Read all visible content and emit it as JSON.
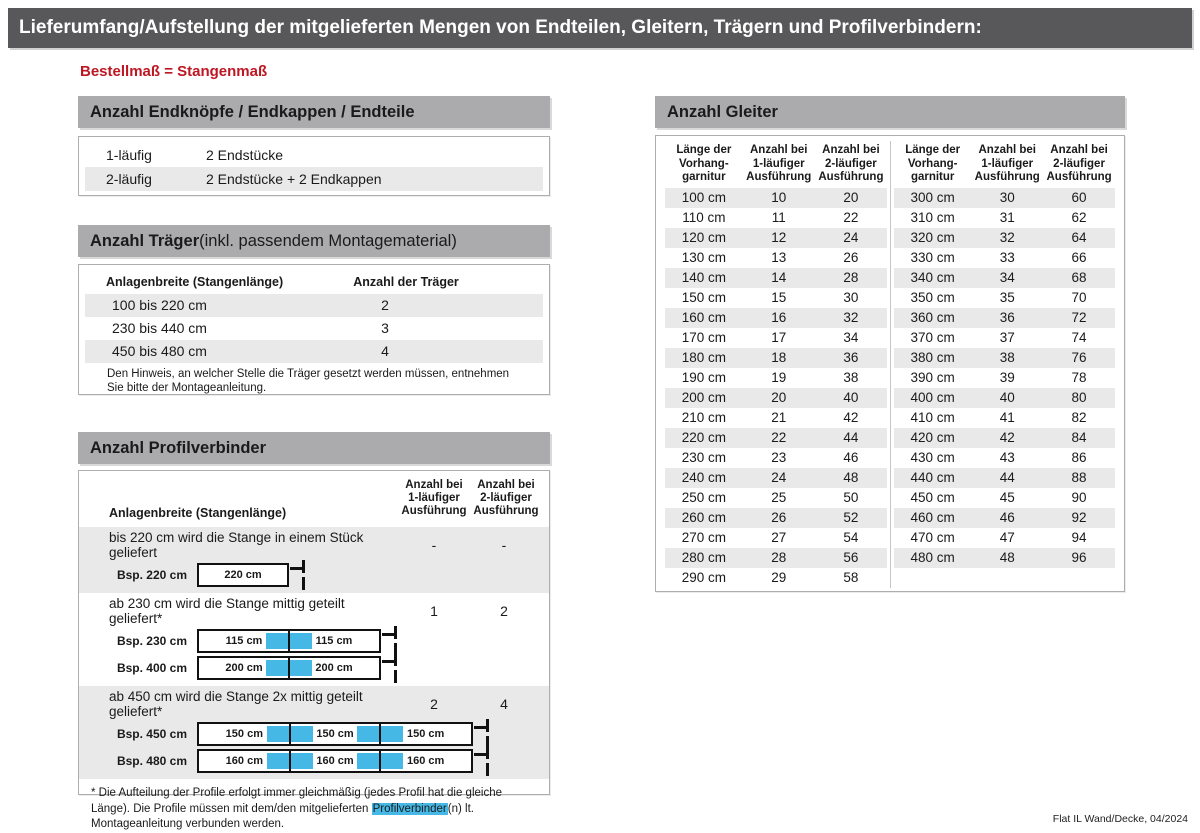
{
  "page": {
    "title": "Lieferumfang/Aufstellung der mitgelieferten Mengen von Endteilen, Gleitern, Trägern und Profilverbindern:",
    "subtitle": "Bestellmaß = Stangenmaß",
    "footer": "Flat IL Wand/Decke, 04/2024"
  },
  "colors": {
    "header_bar": "#58585a",
    "section_bar": "#ababad",
    "row_stripe": "#e9e9ea",
    "accent_red": "#be1622",
    "connector_blue": "#45b8e6"
  },
  "endteile": {
    "title": "Anzahl Endknöpfe / Endkappen / Endteile",
    "rows": [
      {
        "label": "1-läufig",
        "value": "2 Endstücke"
      },
      {
        "label": "2-läufig",
        "value": "2 Endstücke + 2 Endkappen"
      }
    ]
  },
  "traeger": {
    "title_bold": "Anzahl Träger",
    "title_rest": " (inkl. passendem Montagematerial)",
    "col1": "Anlagenbreite (Stangenlänge)",
    "col2": "Anzahl der Träger",
    "rows": [
      {
        "range": "100 bis 220 cm",
        "count": "2"
      },
      {
        "range": "230 bis 440 cm",
        "count": "3"
      },
      {
        "range": "450 bis 480 cm",
        "count": "4"
      }
    ],
    "note": "Den Hinweis, an welcher Stelle die Träger gesetzt werden müssen, entnehmen Sie bitte der Montageanleitung."
  },
  "profilverbinder": {
    "title": "Anzahl Profilverbinder",
    "col1": "Anlagenbreite (Stangenlänge)",
    "col2": "Anzahl bei\n1-läufiger\nAusführung",
    "col3": "Anzahl bei\n2-läufiger\nAusführung",
    "groups": [
      {
        "text": "bis 220 cm wird die Stange in einem Stück geliefert",
        "count1": "-",
        "count2": "-",
        "examples": [
          {
            "label": "Bsp. 220 cm",
            "segments": [
              "220 cm"
            ]
          }
        ]
      },
      {
        "text": "ab 230 cm wird die Stange mittig geteilt geliefert*",
        "count1": "1",
        "count2": "2",
        "examples": [
          {
            "label": "Bsp. 230 cm",
            "segments": [
              "115 cm",
              "115 cm"
            ]
          },
          {
            "label": "Bsp. 400 cm",
            "segments": [
              "200 cm",
              "200 cm"
            ]
          }
        ]
      },
      {
        "text": "ab 450 cm wird die Stange 2x mittig geteilt geliefert*",
        "count1": "2",
        "count2": "4",
        "examples": [
          {
            "label": "Bsp. 450 cm",
            "segments": [
              "150 cm",
              "150 cm",
              "150 cm"
            ]
          },
          {
            "label": "Bsp. 480 cm",
            "segments": [
              "160 cm",
              "160 cm",
              "160 cm"
            ]
          }
        ]
      }
    ],
    "footnote_pre": "* Die Aufteilung der Profile erfolgt immer gleichmäßig (jedes Profil hat die gleiche Länge). Die Profile müssen mit dem/den mitgelieferten ",
    "footnote_highlight": "Profilverbinder",
    "footnote_post": "(n) lt. Montageanleitung verbunden werden."
  },
  "gleiter": {
    "title": "Anzahl Gleiter",
    "headers": [
      "Länge der\nVorhang-\ngarnitur",
      "Anzahl bei\n1-läufiger\nAusführung",
      "Anzahl bei\n2-läufiger\nAusführung"
    ],
    "left_rows": [
      [
        "100 cm",
        "10",
        "20"
      ],
      [
        "110 cm",
        "11",
        "22"
      ],
      [
        "120 cm",
        "12",
        "24"
      ],
      [
        "130 cm",
        "13",
        "26"
      ],
      [
        "140 cm",
        "14",
        "28"
      ],
      [
        "150 cm",
        "15",
        "30"
      ],
      [
        "160 cm",
        "16",
        "32"
      ],
      [
        "170 cm",
        "17",
        "34"
      ],
      [
        "180 cm",
        "18",
        "36"
      ],
      [
        "190 cm",
        "19",
        "38"
      ],
      [
        "200 cm",
        "20",
        "40"
      ],
      [
        "210 cm",
        "21",
        "42"
      ],
      [
        "220 cm",
        "22",
        "44"
      ],
      [
        "230 cm",
        "23",
        "46"
      ],
      [
        "240 cm",
        "24",
        "48"
      ],
      [
        "250 cm",
        "25",
        "50"
      ],
      [
        "260 cm",
        "26",
        "52"
      ],
      [
        "270 cm",
        "27",
        "54"
      ],
      [
        "280 cm",
        "28",
        "56"
      ],
      [
        "290 cm",
        "29",
        "58"
      ]
    ],
    "right_rows": [
      [
        "300 cm",
        "30",
        "60"
      ],
      [
        "310 cm",
        "31",
        "62"
      ],
      [
        "320 cm",
        "32",
        "64"
      ],
      [
        "330 cm",
        "33",
        "66"
      ],
      [
        "340 cm",
        "34",
        "68"
      ],
      [
        "350 cm",
        "35",
        "70"
      ],
      [
        "360 cm",
        "36",
        "72"
      ],
      [
        "370 cm",
        "37",
        "74"
      ],
      [
        "380 cm",
        "38",
        "76"
      ],
      [
        "390 cm",
        "39",
        "78"
      ],
      [
        "400 cm",
        "40",
        "80"
      ],
      [
        "410 cm",
        "41",
        "82"
      ],
      [
        "420 cm",
        "42",
        "84"
      ],
      [
        "430 cm",
        "43",
        "86"
      ],
      [
        "440 cm",
        "44",
        "88"
      ],
      [
        "450 cm",
        "45",
        "90"
      ],
      [
        "460 cm",
        "46",
        "92"
      ],
      [
        "470 cm",
        "47",
        "94"
      ],
      [
        "480 cm",
        "48",
        "96"
      ]
    ]
  }
}
